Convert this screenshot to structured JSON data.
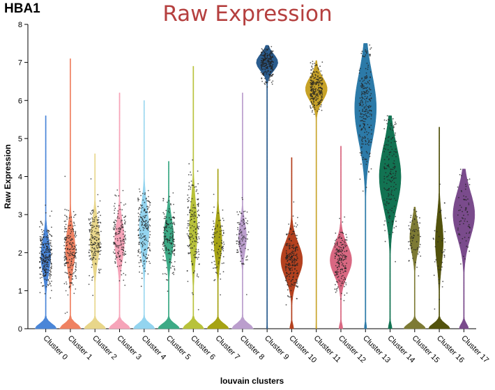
{
  "gene": "HBA1",
  "chart_data": {
    "type": "violin",
    "title": "Raw Expression",
    "xlabel": "louvain clusters",
    "ylabel": "Raw Expression",
    "ylim": [
      0,
      8
    ],
    "yticks": [
      "0",
      "1",
      "2",
      "3",
      "4",
      "5",
      "6",
      "7",
      "8"
    ],
    "grid": false,
    "legend": "none",
    "series": [
      {
        "name": "Cluster 0",
        "color": "#4a86d8",
        "zero_mass": 0.55,
        "median": 1.9,
        "spread": 0.45,
        "max": 5.6,
        "points": 260
      },
      {
        "name": "Cluster 1",
        "color": "#ef8262",
        "zero_mass": 0.55,
        "median": 2.1,
        "spread": 0.5,
        "max": 7.1,
        "points": 200
      },
      {
        "name": "Cluster 2",
        "color": "#e8d68a",
        "zero_mass": 0.55,
        "median": 2.3,
        "spread": 0.5,
        "max": 4.6,
        "points": 170
      },
      {
        "name": "Cluster 3",
        "color": "#f6a4b9",
        "zero_mass": 0.55,
        "median": 2.3,
        "spread": 0.5,
        "max": 6.2,
        "points": 160
      },
      {
        "name": "Cluster 4",
        "color": "#93d4ef",
        "zero_mass": 0.55,
        "median": 2.6,
        "spread": 0.6,
        "max": 6.0,
        "points": 190
      },
      {
        "name": "Cluster 5",
        "color": "#3daa86",
        "zero_mass": 0.55,
        "median": 2.4,
        "spread": 0.5,
        "max": 4.4,
        "points": 170
      },
      {
        "name": "Cluster 6",
        "color": "#b8c23a",
        "zero_mass": 0.6,
        "median": 2.6,
        "spread": 0.7,
        "max": 6.9,
        "points": 170
      },
      {
        "name": "Cluster 7",
        "color": "#a6a314",
        "zero_mass": 0.6,
        "median": 2.3,
        "spread": 0.5,
        "max": 4.2,
        "points": 90
      },
      {
        "name": "Cluster 8",
        "color": "#bb9ecd",
        "zero_mass": 0.6,
        "median": 2.4,
        "spread": 0.4,
        "max": 6.2,
        "points": 90
      },
      {
        "name": "Cluster 9",
        "color": "#2a5c8e",
        "zero_mass": 0.05,
        "median": 7.0,
        "spread": 0.22,
        "max": 7.45,
        "points": 240
      },
      {
        "name": "Cluster 10",
        "color": "#b4411f",
        "zero_mass": 0.15,
        "median": 1.8,
        "spread": 0.45,
        "max": 4.5,
        "points": 230
      },
      {
        "name": "Cluster 11",
        "color": "#c7a227",
        "zero_mass": 0.05,
        "median": 6.3,
        "spread": 0.3,
        "max": 7.05,
        "points": 240
      },
      {
        "name": "Cluster 12",
        "color": "#d96882",
        "zero_mass": 0.15,
        "median": 1.8,
        "spread": 0.4,
        "max": 4.8,
        "points": 190
      },
      {
        "name": "Cluster 13",
        "color": "#2c7aa8",
        "zero_mass": 0.1,
        "median": 5.8,
        "spread": 0.9,
        "max": 7.5,
        "points": 250
      },
      {
        "name": "Cluster 14",
        "color": "#127352",
        "zero_mass": 0.15,
        "median": 4.0,
        "spread": 0.8,
        "max": 5.6,
        "points": 170
      },
      {
        "name": "Cluster 15",
        "color": "#7d7a34",
        "zero_mass": 0.55,
        "median": 2.4,
        "spread": 0.4,
        "max": 3.2,
        "points": 60
      },
      {
        "name": "Cluster 16",
        "color": "#52520d",
        "zero_mass": 0.6,
        "median": 2.3,
        "spread": 0.6,
        "max": 5.3,
        "points": 40
      },
      {
        "name": "Cluster 17",
        "color": "#7a4b8c",
        "zero_mass": 0.3,
        "median": 3.0,
        "spread": 0.6,
        "max": 4.2,
        "points": 70
      }
    ]
  }
}
